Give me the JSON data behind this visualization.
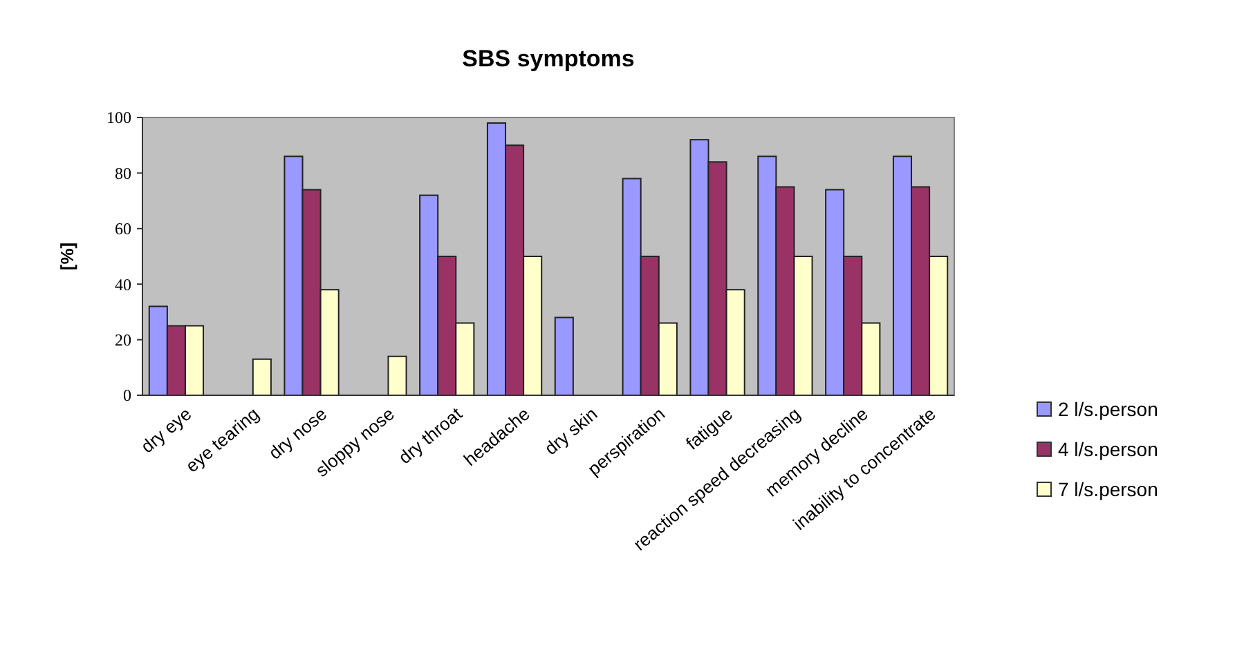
{
  "chart_data": {
    "type": "bar",
    "title": "SBS symptoms",
    "ylabel": "[%]",
    "categories": [
      "dry eye",
      "eye tearing",
      "dry nose",
      "sloppy nose",
      "dry throat",
      "headache",
      "dry skin",
      "perspiration",
      "fatigue",
      "reaction speed decreasing",
      "memory decline",
      "inability to concentrate"
    ],
    "series": [
      {
        "name": "2 l/s.person",
        "color": "#9999ff",
        "values": [
          32,
          0,
          86,
          0,
          72,
          98,
          28,
          78,
          92,
          86,
          74,
          86
        ]
      },
      {
        "name": "4 l/s.person",
        "color": "#993366",
        "values": [
          25,
          0,
          74,
          0,
          50,
          90,
          0,
          50,
          84,
          75,
          50,
          75
        ]
      },
      {
        "name": "7 l/s.person",
        "color": "#ffffcc",
        "values": [
          25,
          13,
          38,
          14,
          26,
          50,
          0,
          26,
          38,
          50,
          26,
          50
        ]
      }
    ],
    "ylim": [
      0,
      100
    ],
    "yticks": [
      0,
      20,
      40,
      60,
      80,
      100
    ],
    "grid": false,
    "legend": "right"
  }
}
